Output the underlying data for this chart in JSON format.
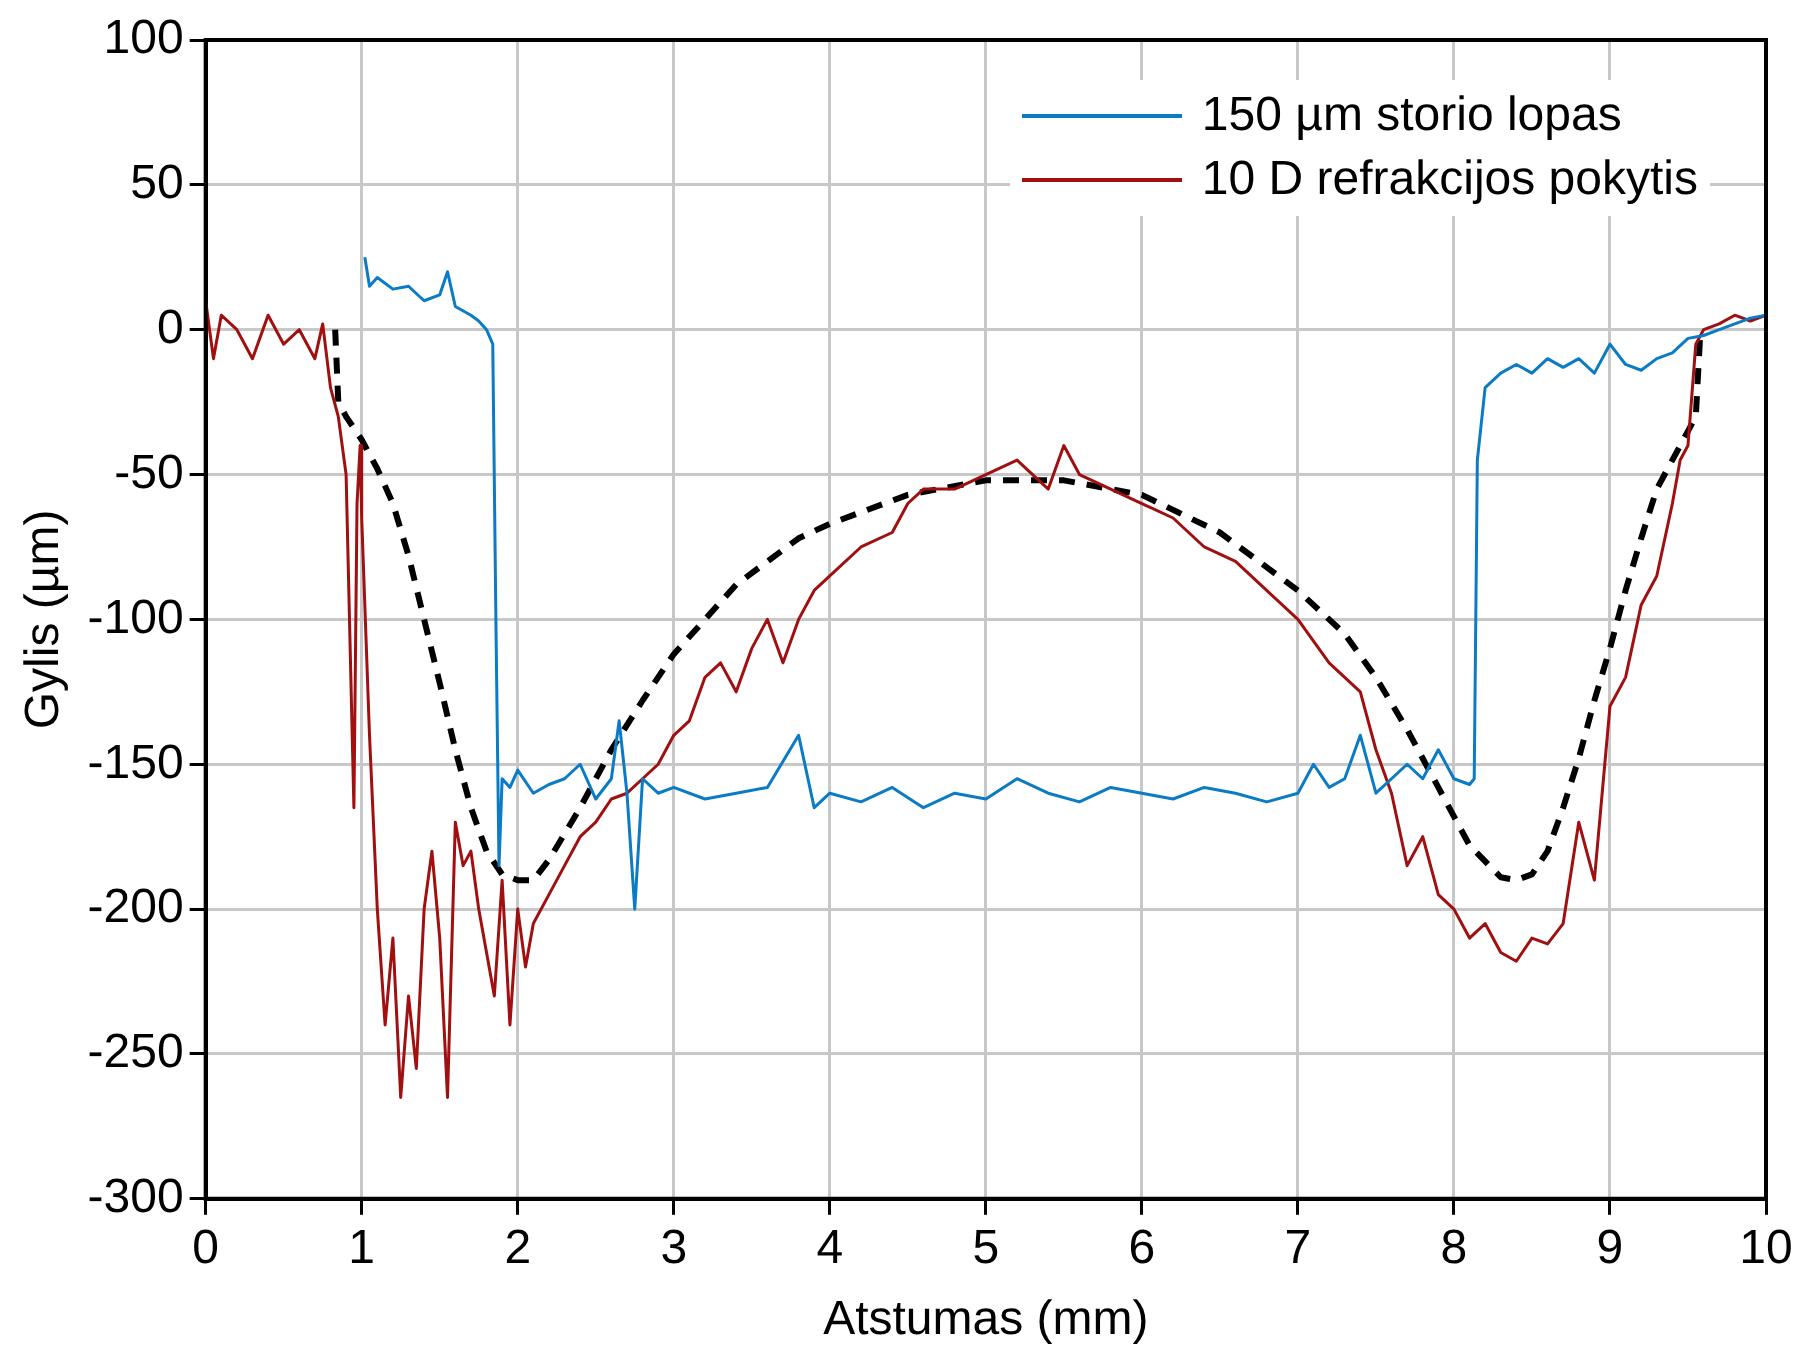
{
  "chart_data": {
    "type": "line",
    "xlabel": "Atstumas (mm)",
    "ylabel": "Gylis (µm)",
    "xlim": [
      0,
      10
    ],
    "xticks": [
      0,
      1,
      2,
      3,
      4,
      5,
      6,
      7,
      8,
      9,
      10
    ],
    "ylim": [
      -300,
      100
    ],
    "yticks": [
      -300,
      -250,
      -200,
      -150,
      -100,
      -50,
      0,
      50,
      100
    ],
    "grid": true,
    "legend": "top right",
    "marker": "none",
    "series": [
      {
        "name": "150 µm storio lopas",
        "color": "#0a7bc4",
        "x": [
          1.02,
          1.05,
          1.1,
          1.2,
          1.3,
          1.4,
          1.5,
          1.55,
          1.6,
          1.7,
          1.75,
          1.8,
          1.84,
          1.86,
          1.88,
          1.9,
          1.95,
          2.0,
          2.1,
          2.2,
          2.3,
          2.4,
          2.5,
          2.6,
          2.65,
          2.7,
          2.75,
          2.8,
          2.9,
          3.0,
          3.2,
          3.4,
          3.6,
          3.8,
          3.9,
          4.0,
          4.2,
          4.4,
          4.6,
          4.8,
          5.0,
          5.2,
          5.4,
          5.6,
          5.8,
          6.0,
          6.2,
          6.4,
          6.6,
          6.8,
          7.0,
          7.1,
          7.2,
          7.3,
          7.4,
          7.5,
          7.6,
          7.7,
          7.8,
          7.9,
          8.0,
          8.1,
          8.13,
          8.15,
          8.2,
          8.3,
          8.4,
          8.5,
          8.6,
          8.7,
          8.8,
          8.9,
          9.0,
          9.1,
          9.2,
          9.3,
          9.4,
          9.5,
          9.6,
          9.7,
          9.8,
          9.9,
          10.0
        ],
        "values": [
          25,
          15,
          18,
          14,
          15,
          10,
          12,
          20,
          8,
          5,
          3,
          0,
          -5,
          -100,
          -185,
          -155,
          -158,
          -152,
          -160,
          -157,
          -155,
          -150,
          -162,
          -155,
          -135,
          -160,
          -200,
          -155,
          -160,
          -158,
          -162,
          -160,
          -158,
          -140,
          -165,
          -160,
          -163,
          -158,
          -165,
          -160,
          -162,
          -155,
          -160,
          -163,
          -158,
          -160,
          -162,
          -158,
          -160,
          -163,
          -160,
          -150,
          -158,
          -155,
          -140,
          -160,
          -155,
          -150,
          -155,
          -145,
          -155,
          -157,
          -155,
          -45,
          -20,
          -15,
          -12,
          -15,
          -10,
          -13,
          -10,
          -15,
          -5,
          -12,
          -14,
          -10,
          -8,
          -3,
          -2,
          0,
          2,
          4,
          5
        ]
      },
      {
        "name": "10 D refrakcijos pokytis",
        "color": "#a01010",
        "x": [
          0.0,
          0.05,
          0.1,
          0.2,
          0.3,
          0.4,
          0.5,
          0.6,
          0.7,
          0.75,
          0.8,
          0.85,
          0.9,
          0.95,
          0.97,
          0.99,
          1.0,
          1.05,
          1.1,
          1.15,
          1.2,
          1.25,
          1.3,
          1.35,
          1.4,
          1.45,
          1.5,
          1.55,
          1.6,
          1.65,
          1.7,
          1.75,
          1.8,
          1.85,
          1.9,
          1.95,
          2.0,
          2.05,
          2.1,
          2.2,
          2.3,
          2.4,
          2.5,
          2.6,
          2.7,
          2.8,
          2.9,
          3.0,
          3.1,
          3.2,
          3.3,
          3.4,
          3.5,
          3.6,
          3.7,
          3.8,
          3.9,
          4.0,
          4.2,
          4.4,
          4.5,
          4.6,
          4.8,
          5.0,
          5.2,
          5.4,
          5.5,
          5.6,
          5.8,
          6.0,
          6.2,
          6.4,
          6.6,
          6.8,
          7.0,
          7.2,
          7.4,
          7.5,
          7.6,
          7.7,
          7.8,
          7.9,
          8.0,
          8.1,
          8.2,
          8.3,
          8.4,
          8.5,
          8.6,
          8.7,
          8.8,
          8.9,
          9.0,
          9.1,
          9.2,
          9.3,
          9.4,
          9.45,
          9.5,
          9.55,
          9.6,
          9.7,
          9.8,
          9.9,
          10.0
        ],
        "values": [
          10,
          -10,
          5,
          0,
          -10,
          5,
          -5,
          0,
          -10,
          2,
          -20,
          -30,
          -50,
          -165,
          -60,
          -40,
          -65,
          -140,
          -200,
          -240,
          -210,
          -265,
          -230,
          -255,
          -200,
          -180,
          -210,
          -265,
          -170,
          -185,
          -180,
          -200,
          -215,
          -230,
          -190,
          -240,
          -200,
          -220,
          -205,
          -195,
          -185,
          -175,
          -170,
          -162,
          -160,
          -155,
          -150,
          -140,
          -135,
          -120,
          -115,
          -125,
          -110,
          -100,
          -115,
          -100,
          -90,
          -85,
          -75,
          -70,
          -60,
          -55,
          -55,
          -50,
          -45,
          -55,
          -40,
          -50,
          -55,
          -60,
          -65,
          -75,
          -80,
          -90,
          -100,
          -115,
          -125,
          -145,
          -160,
          -185,
          -175,
          -195,
          -200,
          -210,
          -205,
          -215,
          -218,
          -210,
          -212,
          -205,
          -170,
          -190,
          -130,
          -120,
          -95,
          -85,
          -60,
          -45,
          -40,
          -5,
          0,
          2,
          5,
          3,
          5
        ]
      },
      {
        "color": "#000000",
        "line_style": "dashed",
        "x": [
          0.83,
          0.85,
          0.9,
          1.0,
          1.1,
          1.2,
          1.3,
          1.4,
          1.5,
          1.6,
          1.7,
          1.8,
          1.9,
          2.0,
          2.1,
          2.2,
          2.4,
          2.6,
          2.8,
          3.0,
          3.2,
          3.4,
          3.6,
          3.8,
          4.0,
          4.5,
          5.0,
          5.5,
          6.0,
          6.5,
          7.0,
          7.3,
          7.5,
          7.7,
          7.9,
          8.1,
          8.3,
          8.4,
          8.5,
          8.6,
          8.7,
          8.8,
          8.9,
          9.0,
          9.1,
          9.2,
          9.3,
          9.4,
          9.5,
          9.55,
          9.58
        ],
        "values": [
          0,
          -25,
          -30,
          -38,
          -48,
          -60,
          -78,
          -100,
          -122,
          -145,
          -165,
          -180,
          -188,
          -190,
          -190,
          -183,
          -165,
          -145,
          -128,
          -112,
          -100,
          -88,
          -80,
          -72,
          -67,
          -57,
          -52,
          -52,
          -57,
          -70,
          -90,
          -105,
          -120,
          -138,
          -158,
          -178,
          -189,
          -190,
          -188,
          -180,
          -165,
          -148,
          -128,
          -110,
          -90,
          -72,
          -55,
          -45,
          -35,
          -30,
          0
        ]
      }
    ]
  }
}
